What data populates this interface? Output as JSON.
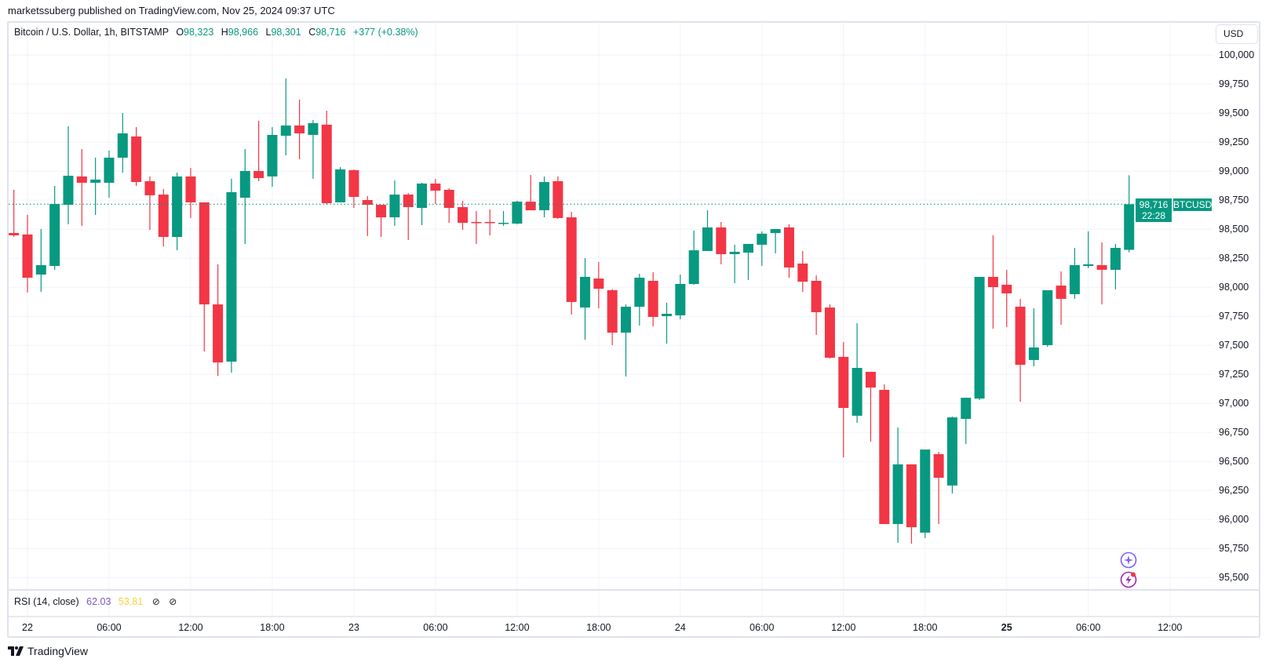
{
  "publisher": "marketssuberg published on TradingView.com, Nov 25, 2024 09:37 UTC",
  "legend": {
    "symbol": "Bitcoin / U.S. Dollar, 1h, BITSTAMP",
    "o_label": "O",
    "o": "98,323",
    "h_label": "H",
    "h": "98,966",
    "l_label": "L",
    "l": "98,301",
    "c_label": "C",
    "c": "98,716",
    "change": "+377 (+0.38%)"
  },
  "rsi": {
    "label": "RSI (14, close)",
    "value1": "62.03",
    "value2": "53.81",
    "icon1": "hidden-value-icon",
    "icon2": "hidden-value-icon"
  },
  "currency_button": "USD",
  "last_price": {
    "symbol": "BTCUSD",
    "price": "98,716",
    "countdown": "22:28",
    "value": 98716
  },
  "logo_text": "TradingView",
  "colors": {
    "up": "#089981",
    "down": "#F23645",
    "grid": "#f0f3fa",
    "rsi1": "#7e57c2",
    "rsi2": "#f7d23c"
  },
  "chart_data": {
    "type": "candlestick",
    "title": "Bitcoin / U.S. Dollar, 1h, BITSTAMP",
    "ylabel": "USD",
    "ylim": [
      95400,
      100250
    ],
    "grid": true,
    "y_ticks": [
      {
        "value": 100000,
        "label": "100,000"
      },
      {
        "value": 99750,
        "label": "99,750"
      },
      {
        "value": 99500,
        "label": "99,500"
      },
      {
        "value": 99250,
        "label": "99,250"
      },
      {
        "value": 99000,
        "label": "99,000"
      },
      {
        "value": 98750,
        "label": "98,750"
      },
      {
        "value": 98500,
        "label": "98,500"
      },
      {
        "value": 98250,
        "label": "98,250"
      },
      {
        "value": 98000,
        "label": "98,000"
      },
      {
        "value": 97750,
        "label": "97,750"
      },
      {
        "value": 97500,
        "label": "97,500"
      },
      {
        "value": 97250,
        "label": "97,250"
      },
      {
        "value": 97000,
        "label": "97,000"
      },
      {
        "value": 96750,
        "label": "96,750"
      },
      {
        "value": 96500,
        "label": "96,500"
      },
      {
        "value": 96250,
        "label": "96,250"
      },
      {
        "value": 96000,
        "label": "96,000"
      },
      {
        "value": 95750,
        "label": "95,750"
      },
      {
        "value": 95500,
        "label": "95,500"
      }
    ],
    "x_unit": "hours from Nov 22 00:00",
    "x_ticks": [
      {
        "hour": 0,
        "label": "22",
        "bold": false
      },
      {
        "hour": 6,
        "label": "06:00",
        "bold": false
      },
      {
        "hour": 12,
        "label": "12:00",
        "bold": false
      },
      {
        "hour": 18,
        "label": "18:00",
        "bold": false
      },
      {
        "hour": 24,
        "label": "23",
        "bold": false
      },
      {
        "hour": 30,
        "label": "06:00",
        "bold": false
      },
      {
        "hour": 36,
        "label": "12:00",
        "bold": false
      },
      {
        "hour": 42,
        "label": "18:00",
        "bold": false
      },
      {
        "hour": 48,
        "label": "24",
        "bold": false
      },
      {
        "hour": 54,
        "label": "06:00",
        "bold": false
      },
      {
        "hour": 60,
        "label": "12:00",
        "bold": false
      },
      {
        "hour": 66,
        "label": "18:00",
        "bold": false
      },
      {
        "hour": 72,
        "label": "25",
        "bold": true
      },
      {
        "hour": 78,
        "label": "06:00",
        "bold": false
      },
      {
        "hour": 84,
        "label": "12:00",
        "bold": false
      }
    ],
    "first_hour": -1,
    "ohlc_fields": [
      "open",
      "high",
      "low",
      "close"
    ],
    "candles": [
      [
        98468,
        98840,
        98434,
        98448
      ],
      [
        98455,
        98624,
        97955,
        98083
      ],
      [
        98110,
        98502,
        97961,
        98191
      ],
      [
        98184,
        98874,
        98151,
        98718
      ],
      [
        98711,
        99387,
        98543,
        98961
      ],
      [
        98955,
        99191,
        98529,
        98901
      ],
      [
        98901,
        99117,
        98624,
        98928
      ],
      [
        98901,
        99178,
        98772,
        99117
      ],
      [
        99117,
        99502,
        98988,
        99326
      ],
      [
        99299,
        99380,
        98874,
        98907
      ],
      [
        98914,
        98955,
        98495,
        98793
      ],
      [
        98799,
        98847,
        98353,
        98434
      ],
      [
        98434,
        98988,
        98319,
        98955
      ],
      [
        98955,
        99029,
        98597,
        98732
      ],
      [
        98732,
        98732,
        97448,
        97853
      ],
      [
        97853,
        98198,
        97238,
        97353
      ],
      [
        97360,
        98935,
        97265,
        98820
      ],
      [
        98772,
        99191,
        98374,
        99002
      ],
      [
        99002,
        99435,
        98914,
        98941
      ],
      [
        98955,
        99380,
        98867,
        99313
      ],
      [
        99306,
        99799,
        99137,
        99394
      ],
      [
        99394,
        99617,
        99103,
        99326
      ],
      [
        99313,
        99441,
        98935,
        99414
      ],
      [
        99401,
        99522,
        98718,
        98725
      ],
      [
        98732,
        99036,
        98732,
        99016
      ],
      [
        99009,
        99016,
        98684,
        98779
      ],
      [
        98752,
        98786,
        98441,
        98711
      ],
      [
        98711,
        98711,
        98434,
        98603
      ],
      [
        98603,
        98921,
        98529,
        98799
      ],
      [
        98799,
        98813,
        98407,
        98691
      ],
      [
        98684,
        98901,
        98536,
        98894
      ],
      [
        98894,
        98934,
        98718,
        98833
      ],
      [
        98840,
        98853,
        98556,
        98684
      ],
      [
        98691,
        98745,
        98495,
        98556
      ],
      [
        98563,
        98657,
        98374,
        98556
      ],
      [
        98563,
        98671,
        98448,
        98556
      ],
      [
        98549,
        98657,
        98529,
        98556
      ],
      [
        98549,
        98745,
        98543,
        98738
      ],
      [
        98738,
        98968,
        98664,
        98664
      ],
      [
        98664,
        98955,
        98603,
        98907
      ],
      [
        98914,
        98955,
        98590,
        98597
      ],
      [
        98603,
        98651,
        97765,
        97874
      ],
      [
        97826,
        98252,
        97549,
        98090
      ],
      [
        98076,
        98218,
        97819,
        97988
      ],
      [
        97975,
        97985,
        97502,
        97610
      ],
      [
        97610,
        97853,
        97232,
        97833
      ],
      [
        97833,
        98117,
        97671,
        98083
      ],
      [
        98056,
        98130,
        97664,
        97745
      ],
      [
        97752,
        97867,
        97516,
        97772
      ],
      [
        97759,
        98110,
        97725,
        98029
      ],
      [
        98029,
        98489,
        98022,
        98319
      ],
      [
        98313,
        98664,
        98313,
        98516
      ],
      [
        98516,
        98563,
        98198,
        98286
      ],
      [
        98286,
        98367,
        98036,
        98306
      ],
      [
        98299,
        98374,
        98063,
        98374
      ],
      [
        98367,
        98482,
        98185,
        98462
      ],
      [
        98468,
        98502,
        98293,
        98502
      ],
      [
        98516,
        98543,
        98083,
        98171
      ],
      [
        98205,
        98313,
        97961,
        98049
      ],
      [
        98056,
        98103,
        97590,
        97786
      ],
      [
        97826,
        97853,
        97387,
        97394
      ],
      [
        97401,
        97529,
        96536,
        96961
      ],
      [
        96894,
        97691,
        96833,
        97306
      ],
      [
        97272,
        97272,
        96671,
        97137
      ],
      [
        97117,
        97164,
        95961,
        95961
      ],
      [
        95961,
        96793,
        95799,
        96475
      ],
      [
        96475,
        96475,
        95792,
        95934
      ],
      [
        95887,
        96603,
        95840,
        96603
      ],
      [
        96563,
        96583,
        95961,
        96360
      ],
      [
        96293,
        96887,
        96225,
        96880
      ],
      [
        96867,
        97049,
        96651,
        97049
      ],
      [
        97042,
        98090,
        97029,
        98090
      ],
      [
        98090,
        98448,
        97644,
        98002
      ],
      [
        98022,
        98151,
        97657,
        97948
      ],
      [
        97833,
        97901,
        97015,
        97333
      ],
      [
        97374,
        97819,
        97320,
        97482
      ],
      [
        97502,
        97975,
        97488,
        97975
      ],
      [
        98015,
        98137,
        97678,
        97901
      ],
      [
        97941,
        98340,
        97901,
        98191
      ],
      [
        98184,
        98482,
        98164,
        98198
      ],
      [
        98191,
        98387,
        97853,
        98151
      ],
      [
        98151,
        98374,
        97982,
        98340
      ],
      [
        98323,
        98966,
        98301,
        98716
      ]
    ]
  }
}
